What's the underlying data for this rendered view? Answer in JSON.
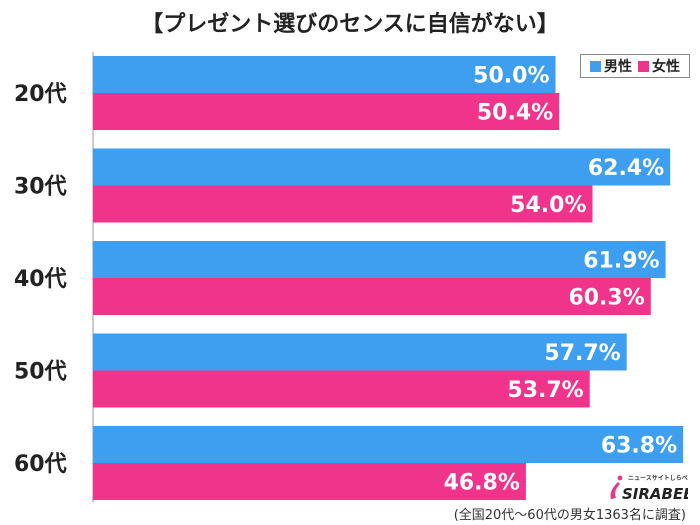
{
  "chart_data": {
    "type": "bar",
    "orientation": "horizontal",
    "title": "【プレゼント選びのセンスに自信がない】",
    "categories": [
      "20代",
      "30代",
      "40代",
      "50代",
      "60代"
    ],
    "series": [
      {
        "name": "男性",
        "color": "#3e9ff0",
        "values": [
          50.0,
          62.4,
          61.9,
          57.7,
          63.8
        ],
        "labels": [
          "50.0%",
          "62.4%",
          "61.9%",
          "57.7%",
          "63.8%"
        ]
      },
      {
        "name": "女性",
        "color": "#f0338b",
        "values": [
          50.4,
          54.0,
          60.3,
          53.7,
          46.8
        ],
        "labels": [
          "50.4%",
          "54.0%",
          "60.3%",
          "53.7%",
          "46.8%"
        ]
      }
    ],
    "xlim": [
      0,
      64
    ],
    "grid": false,
    "legend_position": "top-right",
    "footnote": "(全国20代〜60代の男女1363名に調査)"
  },
  "logo": {
    "text": "SIRABEE",
    "subtext": "ニュースサイトしらべぇ"
  }
}
